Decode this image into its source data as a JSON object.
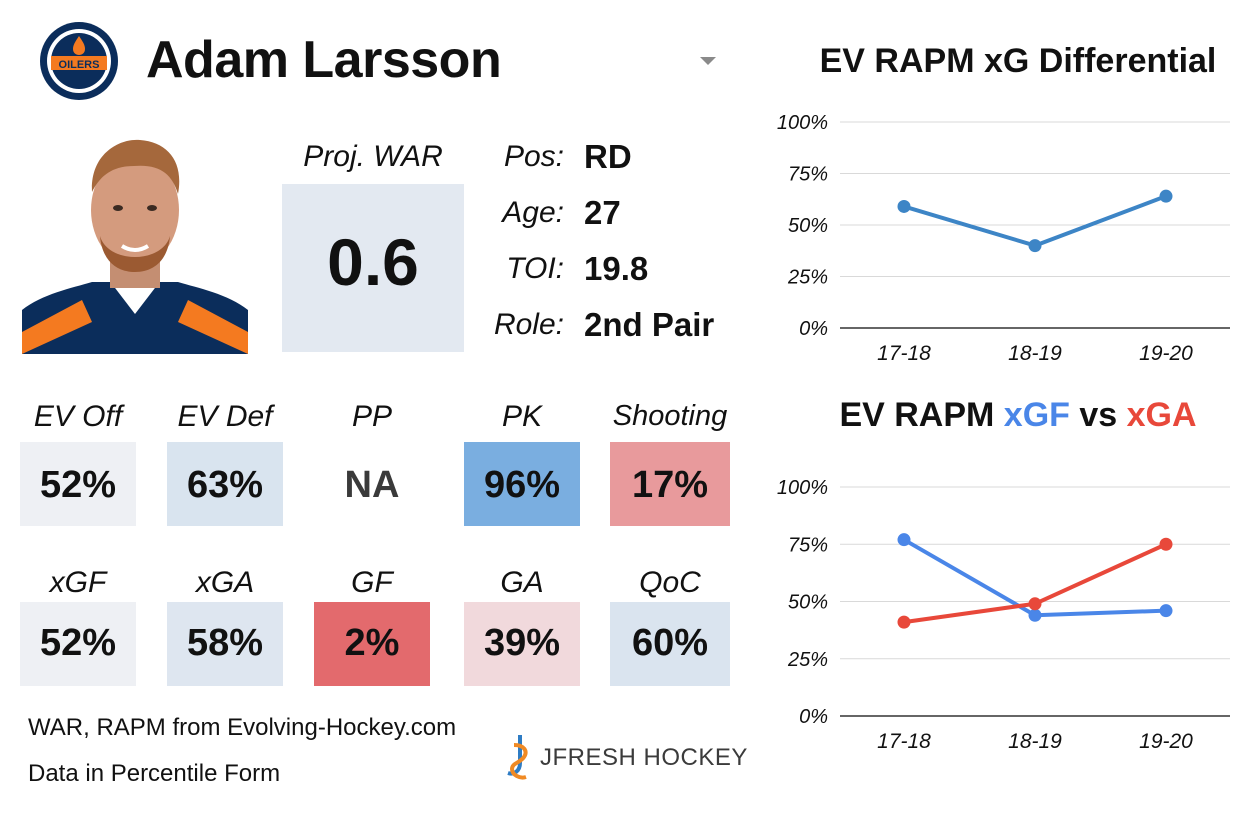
{
  "header": {
    "team_logo_text": "OILERS",
    "player_name": "Adam Larsson"
  },
  "war": {
    "label": "Proj. WAR",
    "value": "0.6"
  },
  "info": [
    {
      "label": "Pos:",
      "value": "RD"
    },
    {
      "label": "Age:",
      "value": "27"
    },
    {
      "label": "TOI:",
      "value": "19.8"
    },
    {
      "label": "Role:",
      "value": "2nd Pair"
    }
  ],
  "percentiles": {
    "row1": [
      {
        "label": "EV Off",
        "value": "52%",
        "color": "#eef0f4"
      },
      {
        "label": "EV Def",
        "value": "63%",
        "color": "#d9e4ef"
      },
      {
        "label": "PP",
        "value": "NA",
        "color": "#ffffff"
      },
      {
        "label": "PK",
        "value": "96%",
        "color": "#7aaee0"
      },
      {
        "label": "Shooting",
        "value": "17%",
        "color": "#e89a9c"
      }
    ],
    "row2": [
      {
        "label": "xGF",
        "value": "52%",
        "color": "#eef0f4"
      },
      {
        "label": "xGA",
        "value": "58%",
        "color": "#dee6f0"
      },
      {
        "label": "GF",
        "value": "2%",
        "color": "#e36a6d"
      },
      {
        "label": "GA",
        "value": "39%",
        "color": "#f1d9dc"
      },
      {
        "label": "QoC",
        "value": "60%",
        "color": "#dae4ef"
      }
    ]
  },
  "footer": {
    "credit_line1": "WAR, RAPM from  Evolving-Hockey.com",
    "credit_line2": "Data in Percentile Form",
    "brand": "JFRESH HOCKEY"
  },
  "colors": {
    "xgf_blue": "#4a86e8",
    "xga_red": "#e8483a",
    "diff_blue": "#3d85c6"
  },
  "chart_data": [
    {
      "type": "line",
      "title": "EV RAPM xG Differential",
      "categories": [
        "17-18",
        "18-19",
        "19-20"
      ],
      "series": [
        {
          "values": [
            59,
            40,
            64
          ],
          "color": "#3d85c6"
        }
      ],
      "ylim": [
        0,
        100
      ],
      "yticks": [
        "0%",
        "25%",
        "50%",
        "75%",
        "100%"
      ],
      "grid": true
    },
    {
      "type": "line",
      "title_parts": [
        "EV RAPM ",
        "xGF",
        " vs ",
        "xGA"
      ],
      "categories": [
        "17-18",
        "18-19",
        "19-20"
      ],
      "series": [
        {
          "name": "xGF",
          "values": [
            77,
            44,
            46
          ],
          "color": "#4a86e8"
        },
        {
          "name": "xGA",
          "values": [
            41,
            49,
            75
          ],
          "color": "#e8483a"
        }
      ],
      "ylim": [
        0,
        100
      ],
      "yticks": [
        "0%",
        "25%",
        "50%",
        "75%",
        "100%"
      ],
      "grid": true
    }
  ]
}
